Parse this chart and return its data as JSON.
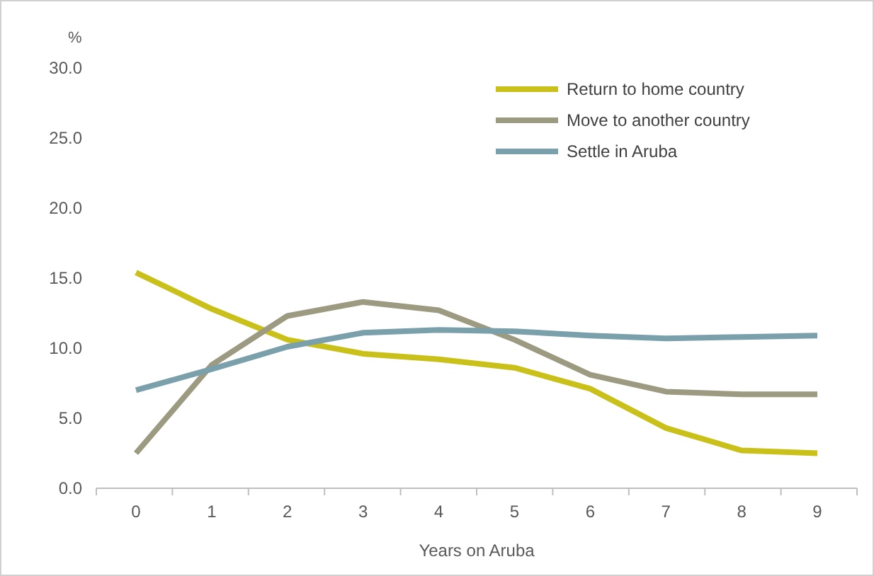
{
  "chart_data": {
    "type": "line",
    "xlabel": "Years on Aruba",
    "ylabel": "%",
    "categories": [
      "0",
      "1",
      "2",
      "3",
      "4",
      "5",
      "6",
      "7",
      "8",
      "9"
    ],
    "ylim": [
      0,
      30
    ],
    "yticks": [
      {
        "value": 0,
        "label": "0.0"
      },
      {
        "value": 5,
        "label": "5.0"
      },
      {
        "value": 10,
        "label": "10.0"
      },
      {
        "value": 15,
        "label": "15.0"
      },
      {
        "value": 20,
        "label": "20.0"
      },
      {
        "value": 25,
        "label": "25.0"
      },
      {
        "value": 30,
        "label": "30.0"
      }
    ],
    "grid": false,
    "legend": "top right",
    "marker": "none",
    "line_style": "solid",
    "series": [
      {
        "name": "Return to home country",
        "color": "#c9c11a",
        "values": [
          15.4,
          12.8,
          10.6,
          9.6,
          9.2,
          8.6,
          7.1,
          4.3,
          2.7,
          2.5
        ]
      },
      {
        "name": "Move to another country",
        "color": "#9d9a82",
        "values": [
          2.5,
          8.8,
          12.3,
          13.3,
          12.7,
          10.6,
          8.1,
          6.9,
          6.7,
          6.7
        ]
      },
      {
        "name": "Settle in Aruba",
        "color": "#7aa0ab",
        "values": [
          7.0,
          8.5,
          10.1,
          11.1,
          11.3,
          11.2,
          10.9,
          10.7,
          10.8,
          10.9
        ]
      }
    ]
  }
}
